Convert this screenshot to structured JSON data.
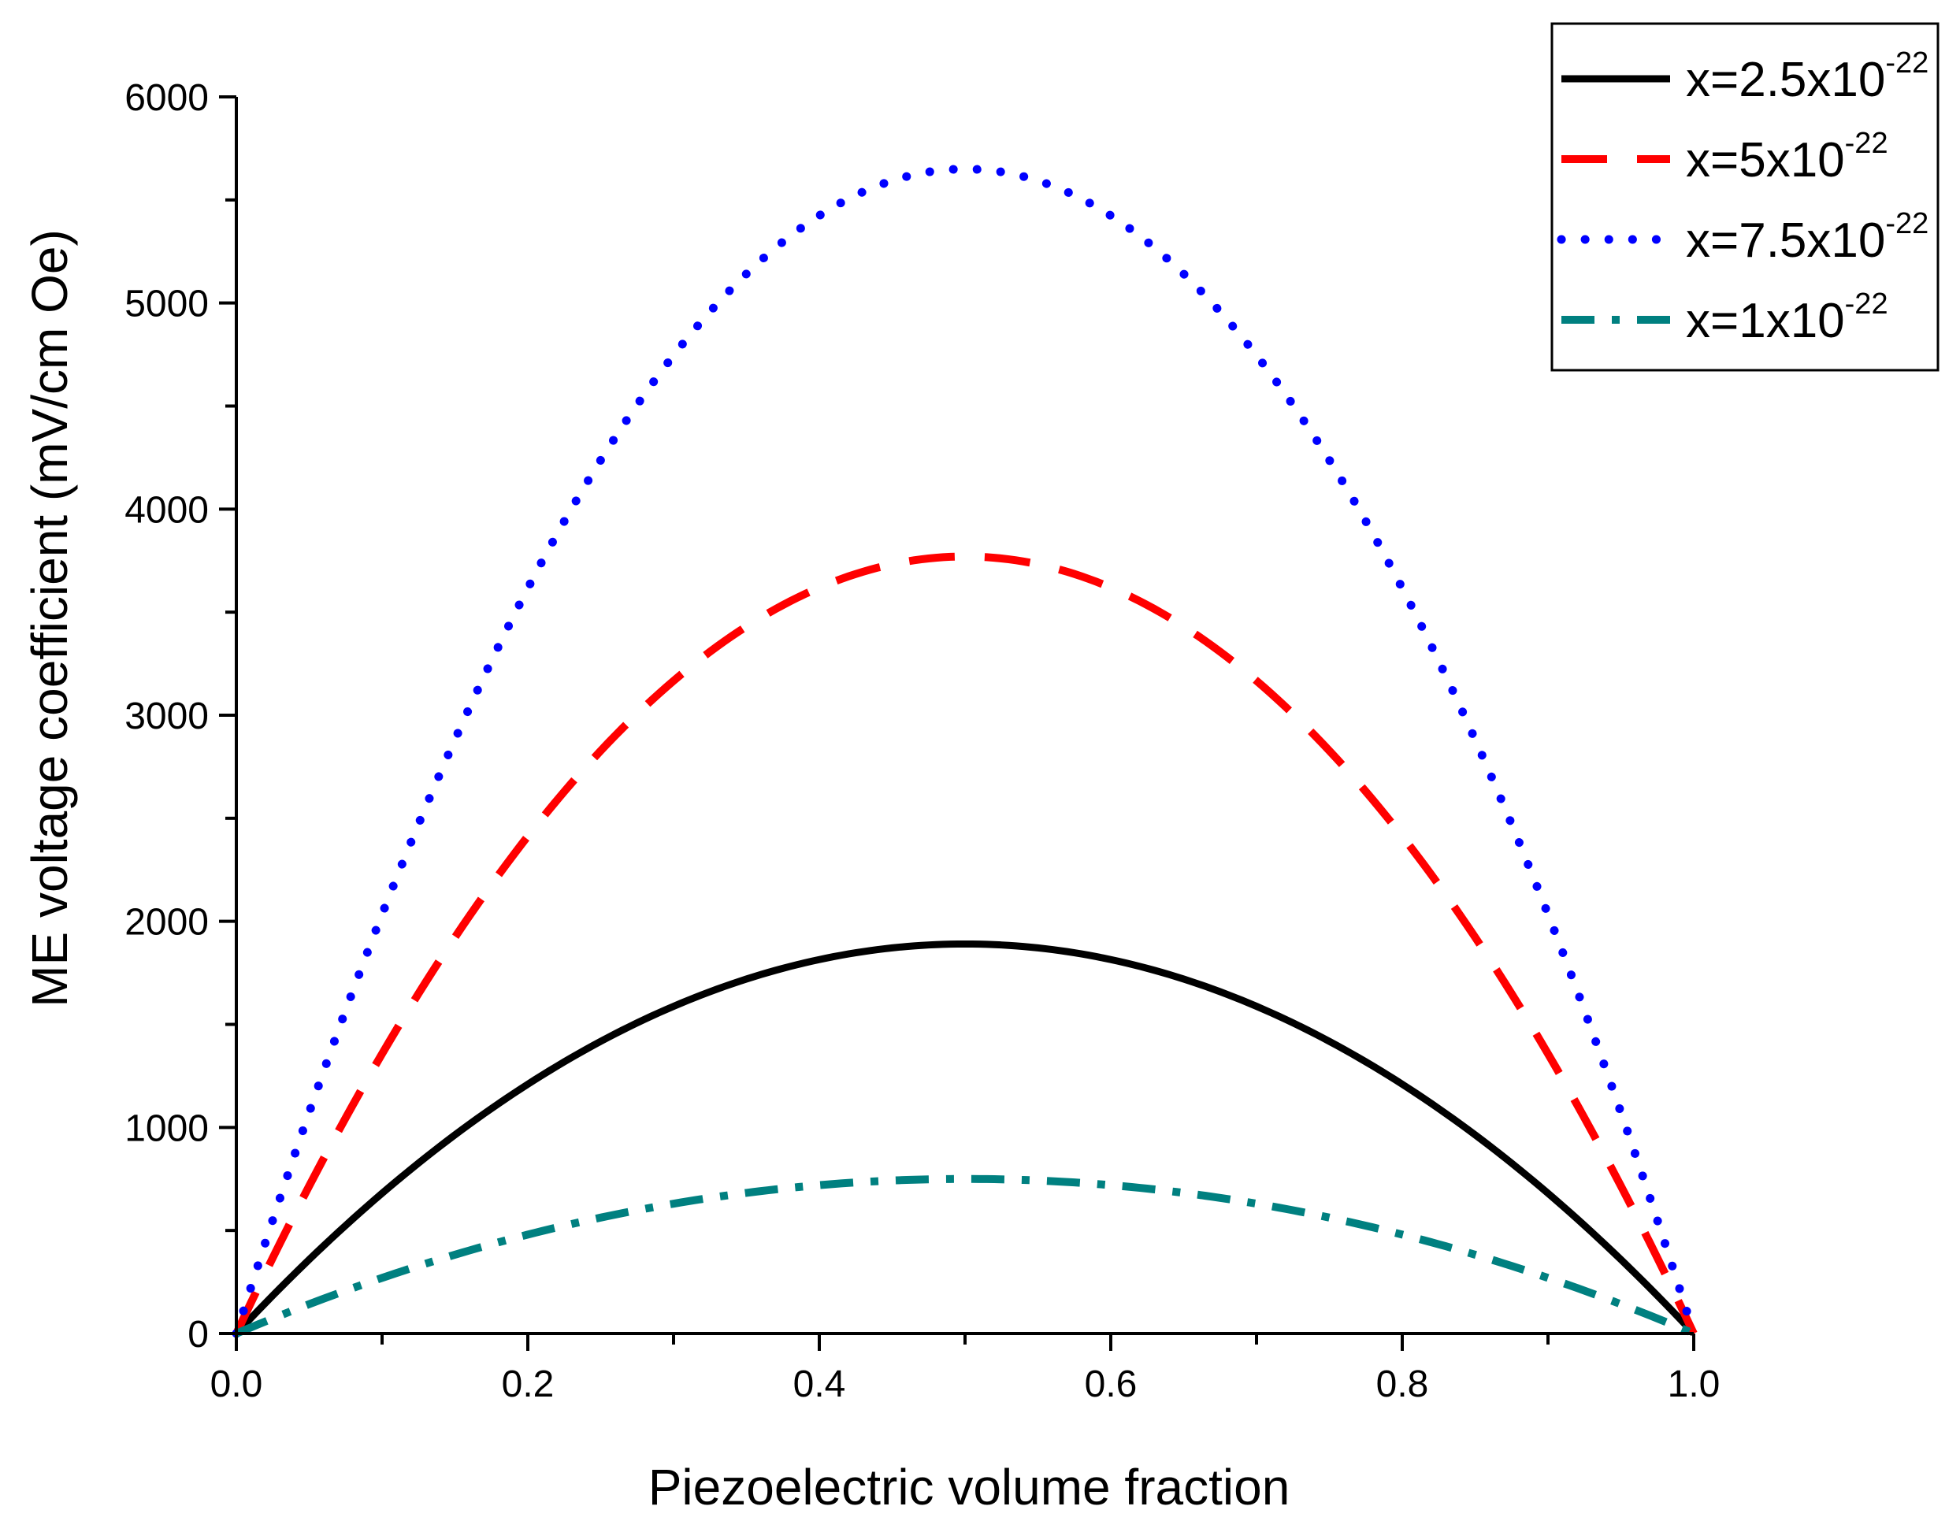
{
  "chart_data": {
    "type": "line",
    "title": "",
    "xlabel": "Piezoelectric volume fraction",
    "ylabel": "ME voltage coefficient (mV/cm Oe)",
    "xlim": [
      0.0,
      1.0
    ],
    "ylim": [
      0,
      6000
    ],
    "x_ticks": [
      0.0,
      0.2,
      0.4,
      0.6,
      0.8,
      1.0
    ],
    "x_tick_labels": [
      "0.0",
      "0.2",
      "0.4",
      "0.6",
      "0.8",
      "1.0"
    ],
    "y_ticks": [
      0,
      1000,
      2000,
      3000,
      4000,
      5000,
      6000
    ],
    "y_tick_labels": [
      "0",
      "1000",
      "2000",
      "3000",
      "4000",
      "5000",
      "6000"
    ],
    "grid": false,
    "legend_position": "top-right",
    "x": [
      0.0,
      0.1,
      0.2,
      0.3,
      0.4,
      0.5,
      0.6,
      0.7,
      0.8,
      0.9,
      1.0
    ],
    "series": [
      {
        "name": "x=2.5x10",
        "exponent": "-22",
        "style": "solid",
        "color": "#000000",
        "values": [
          0,
          680,
          1210,
          1590,
          1810,
          1890,
          1810,
          1590,
          1210,
          680,
          0
        ]
      },
      {
        "name": "x=5x10",
        "exponent": "-22",
        "style": "dashed",
        "color": "#ff0000",
        "values": [
          0,
          1360,
          2420,
          3170,
          3620,
          3770,
          3620,
          3170,
          2420,
          1360,
          0
        ]
      },
      {
        "name": "x=7.5x10",
        "exponent": "-22",
        "style": "dotted",
        "color": "#0000ff",
        "values": [
          0,
          2030,
          3620,
          4750,
          5430,
          5650,
          5430,
          4750,
          3620,
          2030,
          0
        ]
      },
      {
        "name": "x=1x10",
        "exponent": "-22",
        "style": "dashdot",
        "color": "#008080",
        "values": [
          0,
          270,
          480,
          630,
          720,
          750,
          720,
          630,
          480,
          270,
          0
        ]
      }
    ]
  }
}
